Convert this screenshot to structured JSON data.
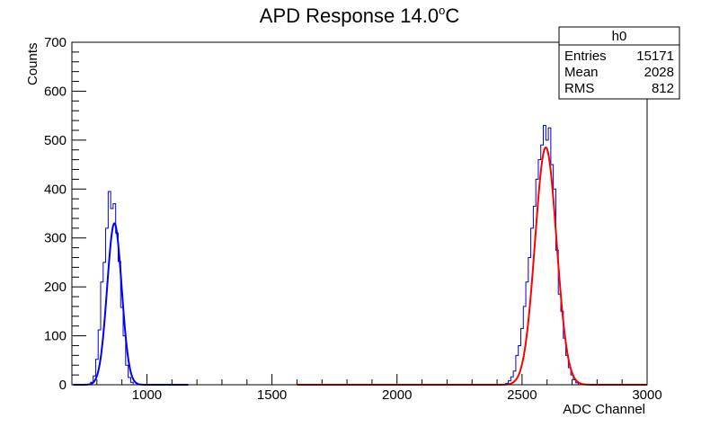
{
  "chart_data": {
    "type": "histogram",
    "title_main": "APD Response 14.0",
    "title_degree": "o",
    "title_unit": "C",
    "xlabel": "ADC Channel",
    "ylabel": "Counts",
    "xlim": [
      700,
      3000
    ],
    "ylim": [
      0,
      700
    ],
    "x_ticks": [
      1000,
      1500,
      2000,
      2500,
      3000
    ],
    "y_ticks": [
      0,
      100,
      200,
      300,
      400,
      500,
      600,
      700
    ],
    "bin_width": 10,
    "histogram_color": "#0000cc",
    "fits": [
      {
        "name": "blue-fit",
        "color": "#0000ff",
        "amplitude": 330,
        "mean": 870,
        "sigma": 29,
        "x_range": [
          705,
          1165
        ]
      },
      {
        "name": "red-fit",
        "color": "#ff0000",
        "amplitude": 485,
        "mean": 2595,
        "sigma": 43,
        "x_range": [
          1600,
          3000
        ]
      }
    ],
    "bins": [
      {
        "x": 780,
        "y": 5
      },
      {
        "x": 790,
        "y": 18
      },
      {
        "x": 800,
        "y": 52
      },
      {
        "x": 810,
        "y": 112
      },
      {
        "x": 820,
        "y": 210
      },
      {
        "x": 830,
        "y": 250
      },
      {
        "x": 840,
        "y": 320
      },
      {
        "x": 850,
        "y": 395
      },
      {
        "x": 860,
        "y": 360
      },
      {
        "x": 870,
        "y": 370
      },
      {
        "x": 880,
        "y": 310
      },
      {
        "x": 890,
        "y": 252
      },
      {
        "x": 900,
        "y": 158
      },
      {
        "x": 910,
        "y": 100
      },
      {
        "x": 920,
        "y": 40
      },
      {
        "x": 930,
        "y": 15
      },
      {
        "x": 940,
        "y": 5
      },
      {
        "x": 2440,
        "y": 3
      },
      {
        "x": 2450,
        "y": 8
      },
      {
        "x": 2460,
        "y": 16
      },
      {
        "x": 2470,
        "y": 28
      },
      {
        "x": 2480,
        "y": 60
      },
      {
        "x": 2490,
        "y": 80
      },
      {
        "x": 2500,
        "y": 115
      },
      {
        "x": 2510,
        "y": 160
      },
      {
        "x": 2520,
        "y": 210
      },
      {
        "x": 2530,
        "y": 260
      },
      {
        "x": 2540,
        "y": 320
      },
      {
        "x": 2550,
        "y": 365
      },
      {
        "x": 2560,
        "y": 420
      },
      {
        "x": 2570,
        "y": 460
      },
      {
        "x": 2580,
        "y": 490
      },
      {
        "x": 2590,
        "y": 530
      },
      {
        "x": 2600,
        "y": 500
      },
      {
        "x": 2610,
        "y": 525
      },
      {
        "x": 2620,
        "y": 450
      },
      {
        "x": 2630,
        "y": 400
      },
      {
        "x": 2640,
        "y": 275
      },
      {
        "x": 2650,
        "y": 185
      },
      {
        "x": 2660,
        "y": 150
      },
      {
        "x": 2670,
        "y": 95
      },
      {
        "x": 2680,
        "y": 60
      },
      {
        "x": 2690,
        "y": 35
      },
      {
        "x": 2700,
        "y": 20
      },
      {
        "x": 2710,
        "y": 10
      },
      {
        "x": 2720,
        "y": 4
      }
    ],
    "stats_box": {
      "title": "h0",
      "rows": [
        {
          "label": "Entries",
          "value": "15171"
        },
        {
          "label": "Mean",
          "value": "2028"
        },
        {
          "label": "RMS",
          "value": "812"
        }
      ]
    }
  }
}
